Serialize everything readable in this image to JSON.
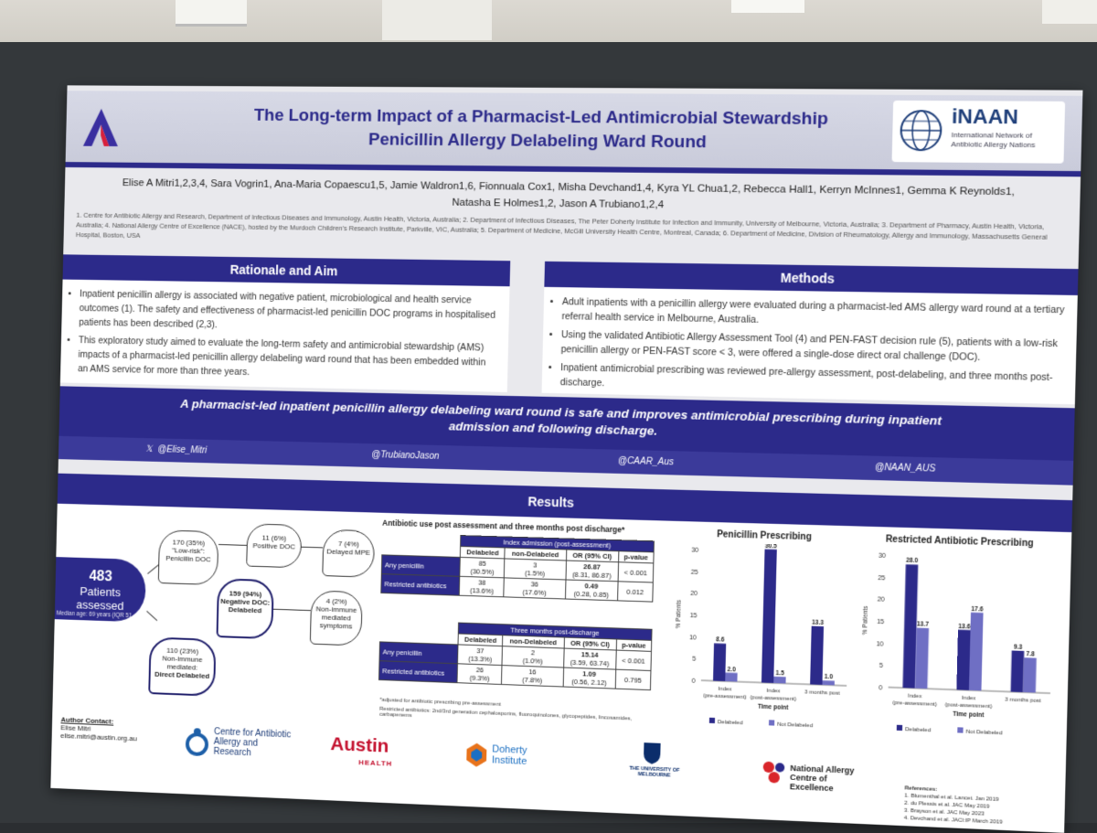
{
  "poster": {
    "title_line1": "The Long-term Impact of  a Pharmacist-Led Antimicrobial Stewardship",
    "title_line2": "Penicillin Allergy Delabeling Ward Round",
    "inaan_name": "iNAAN",
    "inaan_sub": "International Network of Antibiotic Allergy Nations",
    "authors_line1": "Elise A Mitri1,2,3,4, Sara Vogrin1, Ana-Maria Copaescu1,5, Jamie Waldron1,6, Fionnuala Cox1, Misha Devchand1,4, Kyra YL Chua1,2, Rebecca Hall1, Kerryn McInnes1, Gemma K Reynolds1,",
    "authors_line2": "Natasha E Holmes1,2, Jason A Trubiano1,2,4",
    "affiliations": "1. Centre for Antibiotic Allergy and Research, Department of Infectious Diseases and Immunology, Austin Health, Victoria, Australia; 2. Department of Infectious Diseases, The Peter Doherty Institute for Infection and Immunity, University of Melbourne, Victoria, Australia; 3. Department of Pharmacy, Austin Health, Victoria, Australia; 4. National Allergy Centre of Excellence (NACE), hosted by the Murdoch Children's Research Institute, Parkville, VIC, Australia; 5. Department of Medicine, McGill University Health Centre, Montreal, Canada; 6. Department of Medicine, Division of Rheumatology, Allergy and Immunology, Massachusetts General Hospital, Boston, USA",
    "rationale": {
      "heading": "Rationale and Aim",
      "bullets": [
        "Inpatient penicillin allergy is associated with negative patient, microbiological and health service outcomes (1). The safety and effectiveness of pharmacist-led penicillin DOC programs in hospitalised patients has been described (2,3).",
        "This exploratory study aimed to evaluate the long-term safety and antimicrobial stewardship (AMS) impacts of a pharmacist-led penicillin allergy delabeling ward round that has been embedded within an AMS service for more than three years."
      ]
    },
    "methods": {
      "heading": "Methods",
      "bullets": [
        "Adult inpatients with a penicillin allergy were evaluated during a pharmacist-led AMS allergy ward round at a tertiary referral health service in Melbourne, Australia.",
        "Using the validated Antibiotic Allergy Assessment Tool (4) and PEN-FAST decision rule (5), patients with a low-risk penicillin allergy or PEN-FAST score < 3, were offered a single-dose direct oral challenge (DOC).",
        "Inpatient antimicrobial prescribing was reviewed pre-allergy assessment, post-delabeling, and three months post-discharge."
      ]
    },
    "banner_line1": "A pharmacist-led inpatient penicillin allergy delabeling ward round is safe and improves antimicrobial prescribing during inpatient",
    "banner_line2": "admission and following discharge.",
    "handles": [
      "@Elise_Mitri",
      "@TrubianoJason",
      "@CAAR_Aus",
      "@NAAN_AUS"
    ],
    "results_heading": "Results",
    "flow": {
      "patients_n": "483",
      "patients_label": "Patients assessed",
      "patients_sub": "Median age: 69 years (IQR 51, 79)",
      "low_risk": "170 (35%)",
      "low_risk_label": "\"Low-risk\": Penicillin DOC",
      "positive": "11 (6%)",
      "positive_label": "Positive DOC",
      "delayed": "7 (4%)",
      "delayed_label": "Delayed MPE",
      "negative": "159 (94%)",
      "negative_label": "Negative DOC:",
      "negative_label2": "Delabeled",
      "nonimmune_sym": "4 (2%)",
      "nonimmune_sym_label": "Non-immune mediated symptoms",
      "direct": "110 (23%)",
      "direct_label": "Non-immune mediated:",
      "direct_label2": "Direct Delabeled"
    },
    "tables": {
      "title": "Antibiotic use post assessment and three months post discharge*",
      "t1_head": "Index admission (post-assessment)",
      "t2_head": "Three months post-discharge",
      "cols": [
        "Delabeled",
        "non-Delabeled",
        "OR (95% CI)",
        "p-value"
      ],
      "t1_rows": [
        {
          "label": "Any penicillin",
          "a": "85",
          "a2": "(30.5%)",
          "b": "3",
          "b2": "(1.5%)",
          "or": "26.87",
          "ci": "(8.31, 86.87)",
          "p": "< 0.001"
        },
        {
          "label": "Restricted antibiotics",
          "a": "38",
          "a2": "(13.6%)",
          "b": "36",
          "b2": "(17.6%)",
          "or": "0.49",
          "ci": "(0.28, 0.85)",
          "p": "0.012"
        }
      ],
      "t2_rows": [
        {
          "label": "Any penicillin",
          "a": "37",
          "a2": "(13.3%)",
          "b": "2",
          "b2": "(1.0%)",
          "or": "15.14",
          "ci": "(3.59, 63.74)",
          "p": "< 0.001"
        },
        {
          "label": "Restricted antibiotics",
          "a": "26",
          "a2": "(9.3%)",
          "b": "16",
          "b2": "(7.8%)",
          "or": "1.09",
          "ci": "(0.56, 2.12)",
          "p": "0.795"
        }
      ],
      "footnote1": "*adjusted for antibiotic prescribing pre-assessment",
      "footnote2": "Restricted antibiotics: 2nd/3rd generation cephalosporins, fluoroquinolones, glycopeptides, lincosamides, carbapenems"
    },
    "contact": {
      "heading": "Author Contact:",
      "name": "Elise Mitri",
      "email": "elise.mitri@austin.org.au"
    },
    "logos": {
      "caar": "Centre for Antibiotic Allergy and Research",
      "austin": "Austin",
      "austin_sub": "HEALTH",
      "doherty": "Doherty Institute",
      "melbourne": "THE UNIVERSITY OF MELBOURNE",
      "nace": "National Allergy Centre of Excellence"
    },
    "references": {
      "heading": "References:",
      "items": [
        "1. Blumenthal et al. Lancet. Jan 2019",
        "2. du Plessis et al. JAC May 2019",
        "3. Brayson et al. JAC May 2023",
        "4. Devchand et al. JACI:IP March 2019",
        "5. Trubiano et al. JAMA Intern Med"
      ]
    }
  },
  "chart_data": [
    {
      "type": "bar",
      "title": "Penicillin Prescribing",
      "xlabel": "Time point",
      "ylabel": "% Patients",
      "ylim": [
        0,
        30
      ],
      "yticks": [
        0,
        5,
        10,
        15,
        20,
        25,
        30
      ],
      "categories": [
        "Index (pre-assessment)",
        "Index (post-assessment)",
        "3 months post"
      ],
      "series": [
        {
          "name": "Delabeled",
          "values": [
            8.6,
            30.5,
            13.3
          ]
        },
        {
          "name": "Not Delabeled",
          "values": [
            2.0,
            1.5,
            1.0
          ]
        }
      ],
      "labels": [
        [
          "8.6",
          "30.5",
          "13.3"
        ],
        [
          "2.0",
          "1.5",
          "1.0"
        ]
      ],
      "legend": "bottom"
    },
    {
      "type": "bar",
      "title": "Restricted Antibiotic Prescribing",
      "xlabel": "Time point",
      "ylabel": "% Patients",
      "ylim": [
        0,
        30
      ],
      "yticks": [
        0,
        5,
        10,
        15,
        20,
        25,
        30
      ],
      "categories": [
        "Index (pre-assessment)",
        "Index (post-assessment)",
        "3 months post"
      ],
      "series": [
        {
          "name": "Delabeled",
          "values": [
            28.0,
            13.6,
            9.3
          ]
        },
        {
          "name": "Not Delabeled",
          "values": [
            13.7,
            17.6,
            7.8
          ]
        }
      ],
      "labels": [
        [
          "28.0",
          "13.6",
          "9.3"
        ],
        [
          "13.7",
          "17.6",
          "7.8"
        ]
      ],
      "legend": "bottom"
    }
  ],
  "colors": {
    "navy": "#2c2a8a",
    "light_series": "#6f6fc4"
  }
}
